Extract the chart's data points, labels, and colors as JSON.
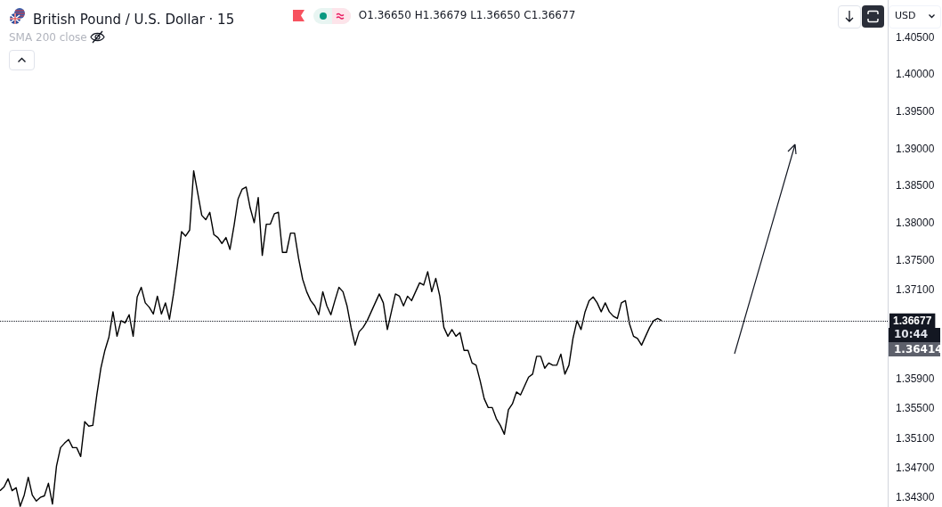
{
  "chart_data": {
    "type": "line",
    "title": "British Pound / U.S. Dollar · 15",
    "annotations": [
      "O1.36650 H1.36679 L1.36650 C1.36677",
      "SMA 200 close",
      "USD",
      "10:44",
      "1.36414"
    ],
    "categories": [
      null,
      null,
      null,
      null,
      null,
      null,
      null,
      null,
      null,
      null,
      null,
      null,
      null,
      null,
      null,
      null,
      null,
      null,
      null,
      null,
      null,
      null,
      null,
      null,
      null,
      null,
      null,
      null,
      null,
      null,
      null,
      null,
      null,
      null,
      null,
      null,
      null,
      null,
      null,
      null,
      null,
      null,
      null,
      null,
      null,
      null,
      null,
      null,
      null,
      null,
      null,
      null,
      null,
      null,
      null,
      null,
      null,
      null,
      null,
      null,
      null,
      null,
      null,
      null,
      null,
      null,
      null,
      null,
      null,
      null,
      null,
      null,
      null,
      null,
      null,
      null,
      null,
      null,
      null,
      null,
      null,
      null,
      null,
      null,
      null,
      null,
      null,
      null,
      null,
      null,
      null,
      null,
      null,
      null,
      null,
      null,
      null,
      null,
      null,
      null,
      null,
      null,
      null,
      null,
      null,
      null,
      null,
      null,
      null,
      null,
      null,
      null,
      null,
      null,
      null,
      null,
      null,
      null,
      null,
      null,
      null,
      null,
      null,
      null,
      null,
      null,
      null,
      null,
      null,
      null,
      null,
      null,
      null,
      null,
      null,
      null,
      null,
      null,
      null,
      null,
      null,
      null,
      null,
      null,
      null,
      null,
      null,
      null,
      null,
      null,
      null,
      null,
      null,
      null,
      null,
      null,
      null,
      null,
      null,
      null,
      null,
      null,
      null,
      null,
      null,
      null,
      null,
      null,
      null,
      null,
      null,
      null,
      null,
      null,
      null,
      null,
      null,
      null,
      null,
      null,
      null,
      null,
      null,
      null,
      null,
      null,
      null,
      null,
      null,
      null,
      null,
      null,
      null,
      null,
      null,
      null,
      null,
      null,
      null,
      null,
      null,
      null,
      null,
      null,
      null,
      null,
      null,
      null,
      null,
      null,
      null,
      null,
      null,
      null,
      null,
      null,
      null,
      null,
      null,
      null,
      null
    ],
    "series": [
      {
        "color": "#000000",
        "values": [
          1.3439,
          1.3444,
          1.3455,
          1.3439,
          1.3443,
          1.3418,
          1.3433,
          1.3457,
          1.3433,
          1.3425,
          1.343,
          1.3432,
          1.3449,
          1.3421,
          1.3472,
          1.3497,
          1.3503,
          1.3508,
          1.3497,
          1.3497,
          1.3485,
          1.3532,
          1.3526,
          1.3527,
          1.3568,
          1.3604,
          1.3628,
          1.3646,
          1.368,
          1.3647,
          1.3668,
          1.3665,
          1.3676,
          1.3647,
          1.37,
          1.3713,
          1.3692,
          1.3686,
          1.3677,
          1.3701,
          1.3677,
          1.3692,
          1.367,
          1.3704,
          1.3744,
          1.3788,
          1.3782,
          1.379,
          1.387,
          1.384,
          1.381,
          1.3804,
          1.3814,
          1.3784,
          1.378,
          1.3772,
          1.378,
          1.3764,
          1.3796,
          1.3832,
          1.3845,
          1.3848,
          1.382,
          1.38,
          1.3834,
          1.3756,
          1.3798,
          1.3798,
          1.3812,
          1.3814,
          1.376,
          1.376,
          1.3786,
          1.3786,
          1.3752,
          1.3724,
          1.3707,
          1.3695,
          1.3688,
          1.3676,
          1.3707,
          1.3688,
          1.3676,
          1.3695,
          1.3713,
          1.3707,
          1.3688,
          1.3659,
          1.3635,
          1.3653,
          1.3659,
          1.3668,
          1.368,
          1.3692,
          1.3704,
          1.3692,
          1.3656,
          1.368,
          1.3704,
          1.3701,
          1.3688,
          1.3701,
          1.3695,
          1.3707,
          1.3719,
          1.3716,
          1.3734,
          1.3707,
          1.3725,
          1.3701,
          1.3659,
          1.3647,
          1.3656,
          1.3647,
          1.3652,
          1.3628,
          1.3628,
          1.3611,
          1.3608,
          1.3587,
          1.3563,
          1.3551,
          1.3551,
          1.3536,
          1.3527,
          1.3515,
          1.3548,
          1.3556,
          1.3572,
          1.3568,
          1.358,
          1.3592,
          1.3596,
          1.362,
          1.362,
          1.3604,
          1.3611,
          1.3608,
          1.3608,
          1.3623,
          1.3596,
          1.3608,
          1.3644,
          1.3668,
          1.3656,
          1.368,
          1.3695,
          1.37,
          1.3692,
          1.368,
          1.3692,
          1.368,
          1.3674,
          1.3671,
          1.3692,
          1.3695,
          1.3664,
          1.3647,
          1.3644,
          1.3635,
          1.3647,
          1.3659,
          1.3668,
          1.3671,
          1.3668,
          null,
          null,
          null,
          null,
          null,
          null,
          null,
          null,
          null,
          null,
          null,
          null,
          null,
          null,
          null,
          null,
          null,
          null,
          null,
          null,
          null,
          null,
          null,
          null,
          null,
          null,
          null,
          null,
          null,
          null,
          null,
          null,
          null,
          null,
          null,
          null,
          null,
          null,
          null,
          null,
          null,
          null,
          null,
          null,
          null,
          null,
          null,
          null,
          null,
          null,
          null,
          null,
          null,
          null,
          null,
          null
        ]
      }
    ],
    "ylim": [
      1.3417,
      1.41
    ],
    "yticks": [
      {
        "value": 1.405,
        "label": "1.40500"
      },
      {
        "value": 1.4,
        "label": "1.40000"
      },
      {
        "value": 1.395,
        "label": "1.39500"
      },
      {
        "value": 1.39,
        "label": "1.39000"
      },
      {
        "value": 1.385,
        "label": "1.38500"
      },
      {
        "value": 1.38,
        "label": "1.38000"
      },
      {
        "value": 1.375,
        "label": "1.37500"
      },
      {
        "value": 1.371,
        "label": "1.37100"
      },
      {
        "value": 1.359,
        "label": "1.35900"
      },
      {
        "value": 1.355,
        "label": "1.35500"
      },
      {
        "value": 1.351,
        "label": "1.35100"
      },
      {
        "value": 1.347,
        "label": "1.34700"
      },
      {
        "value": 1.343,
        "label": "1.34300"
      }
    ],
    "ref_lines": [
      {
        "axis": "y",
        "value": 1.36677,
        "label": "1.36677",
        "color": "#131722",
        "line_style": "dotted"
      }
    ],
    "tick_labels": "y",
    "grid": false,
    "line_style": "solid"
  }
}
